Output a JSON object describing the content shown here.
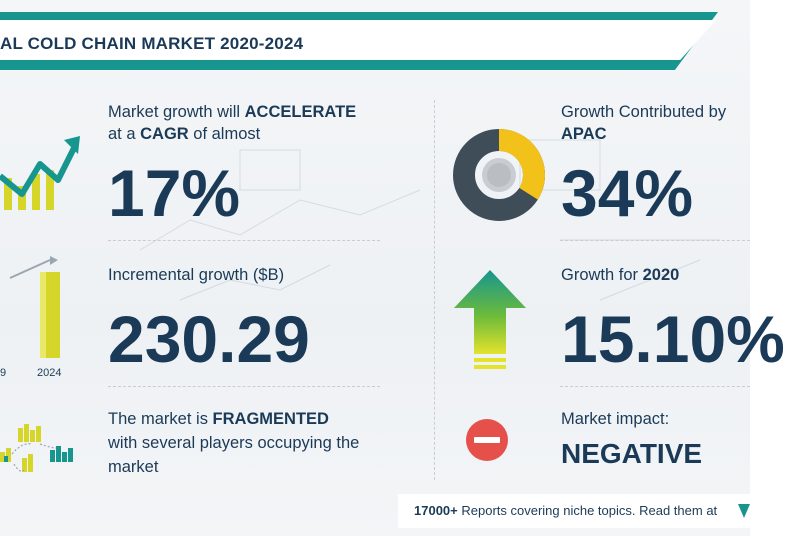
{
  "header": {
    "title": "AL COLD CHAIN MARKET 2020-2024"
  },
  "cagr": {
    "line1_prefix": "Market growth will ",
    "line1_bold": "ACCELERATE",
    "line2_prefix": "at a ",
    "line2_bold": "CAGR",
    "line2_suffix": " of almost",
    "value": "17%"
  },
  "incremental": {
    "label": "Incremental growth ($B)",
    "value": "230.29",
    "year_left": "9",
    "year_right": "2024"
  },
  "fragmented": {
    "line1_prefix": "The market is ",
    "line1_bold": "FRAGMENTED",
    "line2": "with several players occupying the",
    "line3": "market"
  },
  "apac": {
    "line1": "Growth Contributed by",
    "line2_bold": "APAC",
    "value": "34%",
    "share": 0.34
  },
  "growth2020": {
    "label_prefix": "Growth for ",
    "label_bold": "2020",
    "value": "15.10%"
  },
  "impact": {
    "label": "Market impact:",
    "value": "NEGATIVE"
  },
  "footer": {
    "count": "17000+",
    "text": " Reports covering niche topics. Read them at"
  },
  "colors": {
    "teal": "#17958f",
    "navy": "#1b3a57",
    "yellow": "#f2c21b",
    "green": "#3aa64c",
    "red": "#e5504a",
    "gray": "#3f4d59"
  },
  "icons": [
    "growth-chart-icon",
    "bar-growth-icon",
    "players-icon",
    "donut-chart-icon",
    "up-arrow-icon",
    "minus-circle-icon"
  ]
}
